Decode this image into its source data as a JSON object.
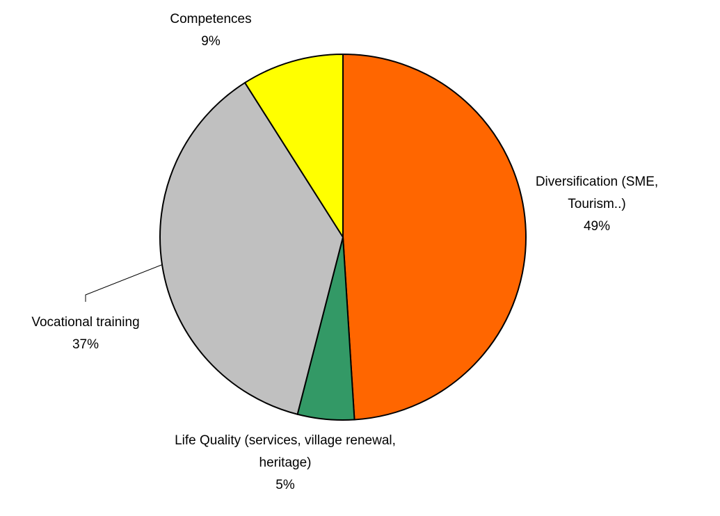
{
  "chart_data": {
    "type": "pie",
    "categories": [
      "Diversification (SME, Tourism..)",
      "Life Quality (services, village renewal, heritage)",
      "Vocational training",
      "Competences"
    ],
    "values": [
      49,
      5,
      37,
      9
    ],
    "value_labels": [
      "49%",
      "5%",
      "37%",
      "9%"
    ],
    "colors": [
      "#ff6600",
      "#339966",
      "#c0c0c0",
      "#ffff00"
    ]
  }
}
